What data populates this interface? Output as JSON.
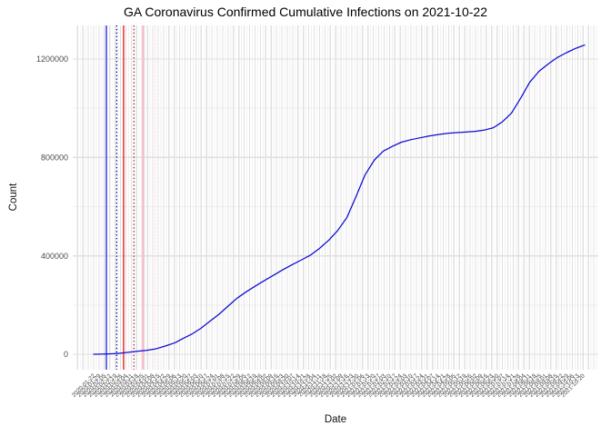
{
  "chart_data": {
    "type": "line",
    "title": "GA Coronavirus Confirmed Cumulative Infections on 2021-10-22",
    "xlabel": "Date",
    "ylabel": "Count",
    "x_axis": {
      "start_date": "2020-01-22",
      "end_date": "2021-10-22",
      "tick_every_days": 7,
      "label_format": "YYYY-MM-DD",
      "label_angle_deg": 45,
      "label_color": "#4a4a4a"
    },
    "y_axis": {
      "ticks": [
        0,
        400000,
        800000,
        1200000
      ],
      "minor_ticks": [
        200000,
        600000,
        1000000
      ],
      "lim": [
        -60000,
        1340000
      ],
      "label_color": "#4d4d4d"
    },
    "grid": {
      "on": true,
      "major_color": "#e0e0e0",
      "minor_color": "#f1f1f1"
    },
    "series": [
      {
        "name": "confirmed-cumulative-infections",
        "color": "#0b0bd6",
        "points": [
          [
            0.0,
            0
          ],
          [
            0.013,
            500
          ],
          [
            0.03,
            1500
          ],
          [
            0.047,
            3000
          ],
          [
            0.062,
            6000
          ],
          [
            0.088,
            12000
          ],
          [
            0.107,
            16000
          ],
          [
            0.125,
            21000
          ],
          [
            0.145,
            33000
          ],
          [
            0.166,
            47000
          ],
          [
            0.18,
            62000
          ],
          [
            0.199,
            81000
          ],
          [
            0.218,
            105000
          ],
          [
            0.236,
            133000
          ],
          [
            0.255,
            162000
          ],
          [
            0.274,
            196000
          ],
          [
            0.292,
            228000
          ],
          [
            0.311,
            254000
          ],
          [
            0.33,
            278000
          ],
          [
            0.348,
            300000
          ],
          [
            0.367,
            322000
          ],
          [
            0.385,
            343000
          ],
          [
            0.404,
            364000
          ],
          [
            0.422,
            382000
          ],
          [
            0.441,
            402000
          ],
          [
            0.46,
            430000
          ],
          [
            0.479,
            464000
          ],
          [
            0.497,
            503000
          ],
          [
            0.516,
            556000
          ],
          [
            0.534,
            640000
          ],
          [
            0.553,
            730000
          ],
          [
            0.572,
            790000
          ],
          [
            0.59,
            826000
          ],
          [
            0.609,
            846000
          ],
          [
            0.627,
            862000
          ],
          [
            0.646,
            872000
          ],
          [
            0.665,
            880000
          ],
          [
            0.683,
            887000
          ],
          [
            0.702,
            893000
          ],
          [
            0.721,
            898000
          ],
          [
            0.739,
            901000
          ],
          [
            0.758,
            903000
          ],
          [
            0.777,
            906000
          ],
          [
            0.795,
            911000
          ],
          [
            0.814,
            921000
          ],
          [
            0.832,
            944000
          ],
          [
            0.851,
            980000
          ],
          [
            0.87,
            1042000
          ],
          [
            0.888,
            1105000
          ],
          [
            0.907,
            1150000
          ],
          [
            0.926,
            1180000
          ],
          [
            0.944,
            1206000
          ],
          [
            0.963,
            1226000
          ],
          [
            0.981,
            1243000
          ],
          [
            1.0,
            1257000
          ]
        ]
      }
    ],
    "event_vlines": [
      {
        "x_frac": 0.026,
        "color": "#2222ee",
        "style": "solid",
        "width": 1.3
      },
      {
        "x_frac": 0.047,
        "color": "#000090",
        "style": "dotted",
        "width": 1.3
      },
      {
        "x_frac": 0.061,
        "color": "#ee2020",
        "style": "solid",
        "width": 1.4
      },
      {
        "x_frac": 0.082,
        "color": "#a31212",
        "style": "dotted",
        "width": 1.3
      },
      {
        "x_frac": 0.101,
        "color": "#ffb6c4",
        "style": "solid",
        "width": 2.0
      },
      {
        "x_frac": 0.125,
        "color": "#ffd2dc",
        "style": "dotted",
        "width": 1.3
      }
    ],
    "legend": {
      "shown": false
    }
  }
}
